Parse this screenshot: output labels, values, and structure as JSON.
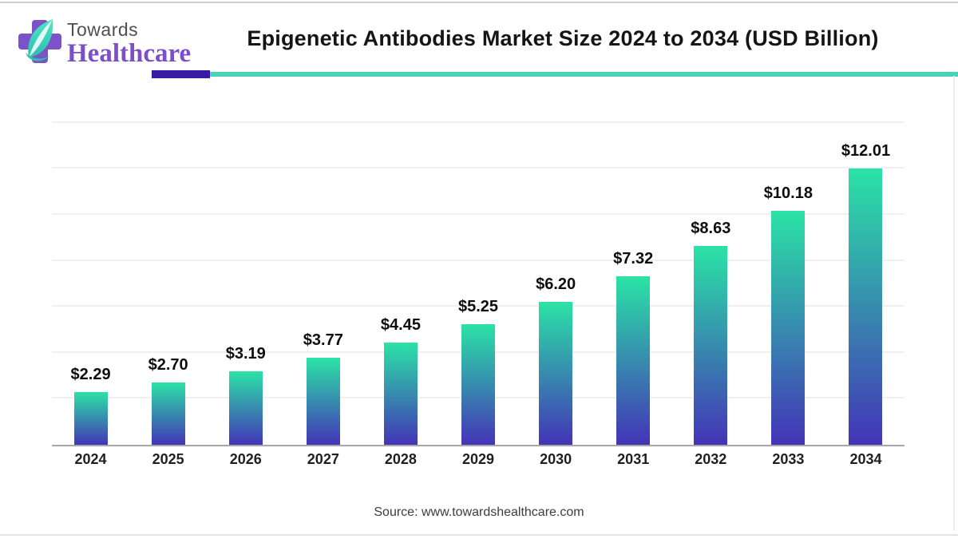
{
  "logo": {
    "word_top": "Towards",
    "word_bottom": "Healthcare",
    "cross_color": "#7c52c8",
    "leaf_color_light": "#52e5c3",
    "leaf_color_dark": "#2bbfae"
  },
  "header": {
    "title": "Epigenetic Antibodies Market Size 2024 to 2034 (USD Billion)",
    "underline_accent_color": "#3a1ba6",
    "underline_line_color": "#49d4ba"
  },
  "chart_data": {
    "type": "bar",
    "title": "Epigenetic Antibodies Market Size 2024 to 2034 (USD Billion)",
    "unit": "USD Billion",
    "categories": [
      "2024",
      "2025",
      "2026",
      "2027",
      "2028",
      "2029",
      "2030",
      "2031",
      "2032",
      "2033",
      "2034"
    ],
    "values": [
      2.29,
      2.7,
      3.19,
      3.77,
      4.45,
      5.25,
      6.2,
      7.32,
      8.63,
      10.18,
      12.01
    ],
    "value_labels": [
      "$2.29",
      "$2.70",
      "$3.19",
      "$3.77",
      "$4.45",
      "$5.25",
      "$6.20",
      "$7.32",
      "$8.63",
      "$10.18",
      "$12.01"
    ],
    "xlabel": "",
    "ylabel": "",
    "ylim": [
      0,
      14
    ],
    "grid_step": 2,
    "grid": true,
    "legend": false,
    "bar_gradient_top": "#2be3a6",
    "bar_gradient_bottom": "#4334b7",
    "axis_color": "#a8a8a8",
    "gridline_color": "#f0f0f0"
  },
  "footer": {
    "source": "Source: www.towardshealthcare.com"
  }
}
